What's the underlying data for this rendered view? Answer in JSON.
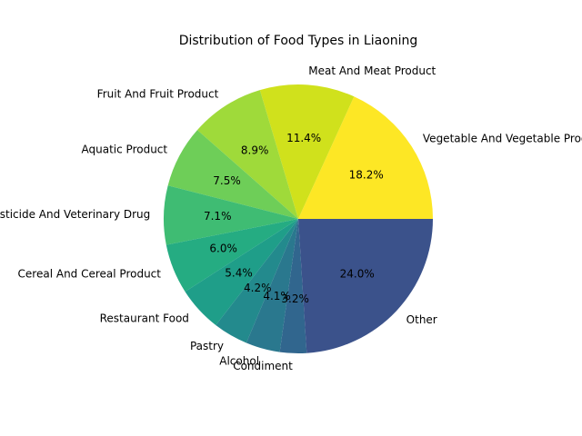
{
  "chart_data": {
    "type": "pie",
    "title": "Distribution of Food Types in Liaoning",
    "start_angle_deg": 0,
    "direction": "counterclockwise",
    "slices": [
      {
        "label": "Vegetable And Vegetable Product",
        "value": 18.2,
        "pct_text": "18.2%",
        "color": "#fde725"
      },
      {
        "label": "Meat And Meat Product",
        "value": 11.4,
        "pct_text": "11.4%",
        "color": "#d0e11c"
      },
      {
        "label": "Fruit And Fruit Product",
        "value": 8.9,
        "pct_text": "8.9%",
        "color": "#9fda3a"
      },
      {
        "label": "Aquatic Product",
        "value": 7.5,
        "pct_text": "7.5%",
        "color": "#6ece58"
      },
      {
        "label": "Pesticide And Veterinary Drug",
        "value": 7.1,
        "pct_text": "7.1%",
        "color": "#3fbc73"
      },
      {
        "label": "Cereal And Cereal Product",
        "value": 6.0,
        "pct_text": "6.0%",
        "color": "#25ac82"
      },
      {
        "label": "Restaurant Food",
        "value": 5.4,
        "pct_text": "5.4%",
        "color": "#1f9e89"
      },
      {
        "label": "Pastry",
        "value": 4.2,
        "pct_text": "4.2%",
        "color": "#238a8d"
      },
      {
        "label": "Alcohol",
        "value": 4.1,
        "pct_text": "4.1%",
        "color": "#2a788e"
      },
      {
        "label": "Condiment",
        "value": 3.2,
        "pct_text": "3.2%",
        "color": "#31668e"
      },
      {
        "label": "Other",
        "value": 24.0,
        "pct_text": "24.0%",
        "color": "#3b528b"
      }
    ]
  }
}
